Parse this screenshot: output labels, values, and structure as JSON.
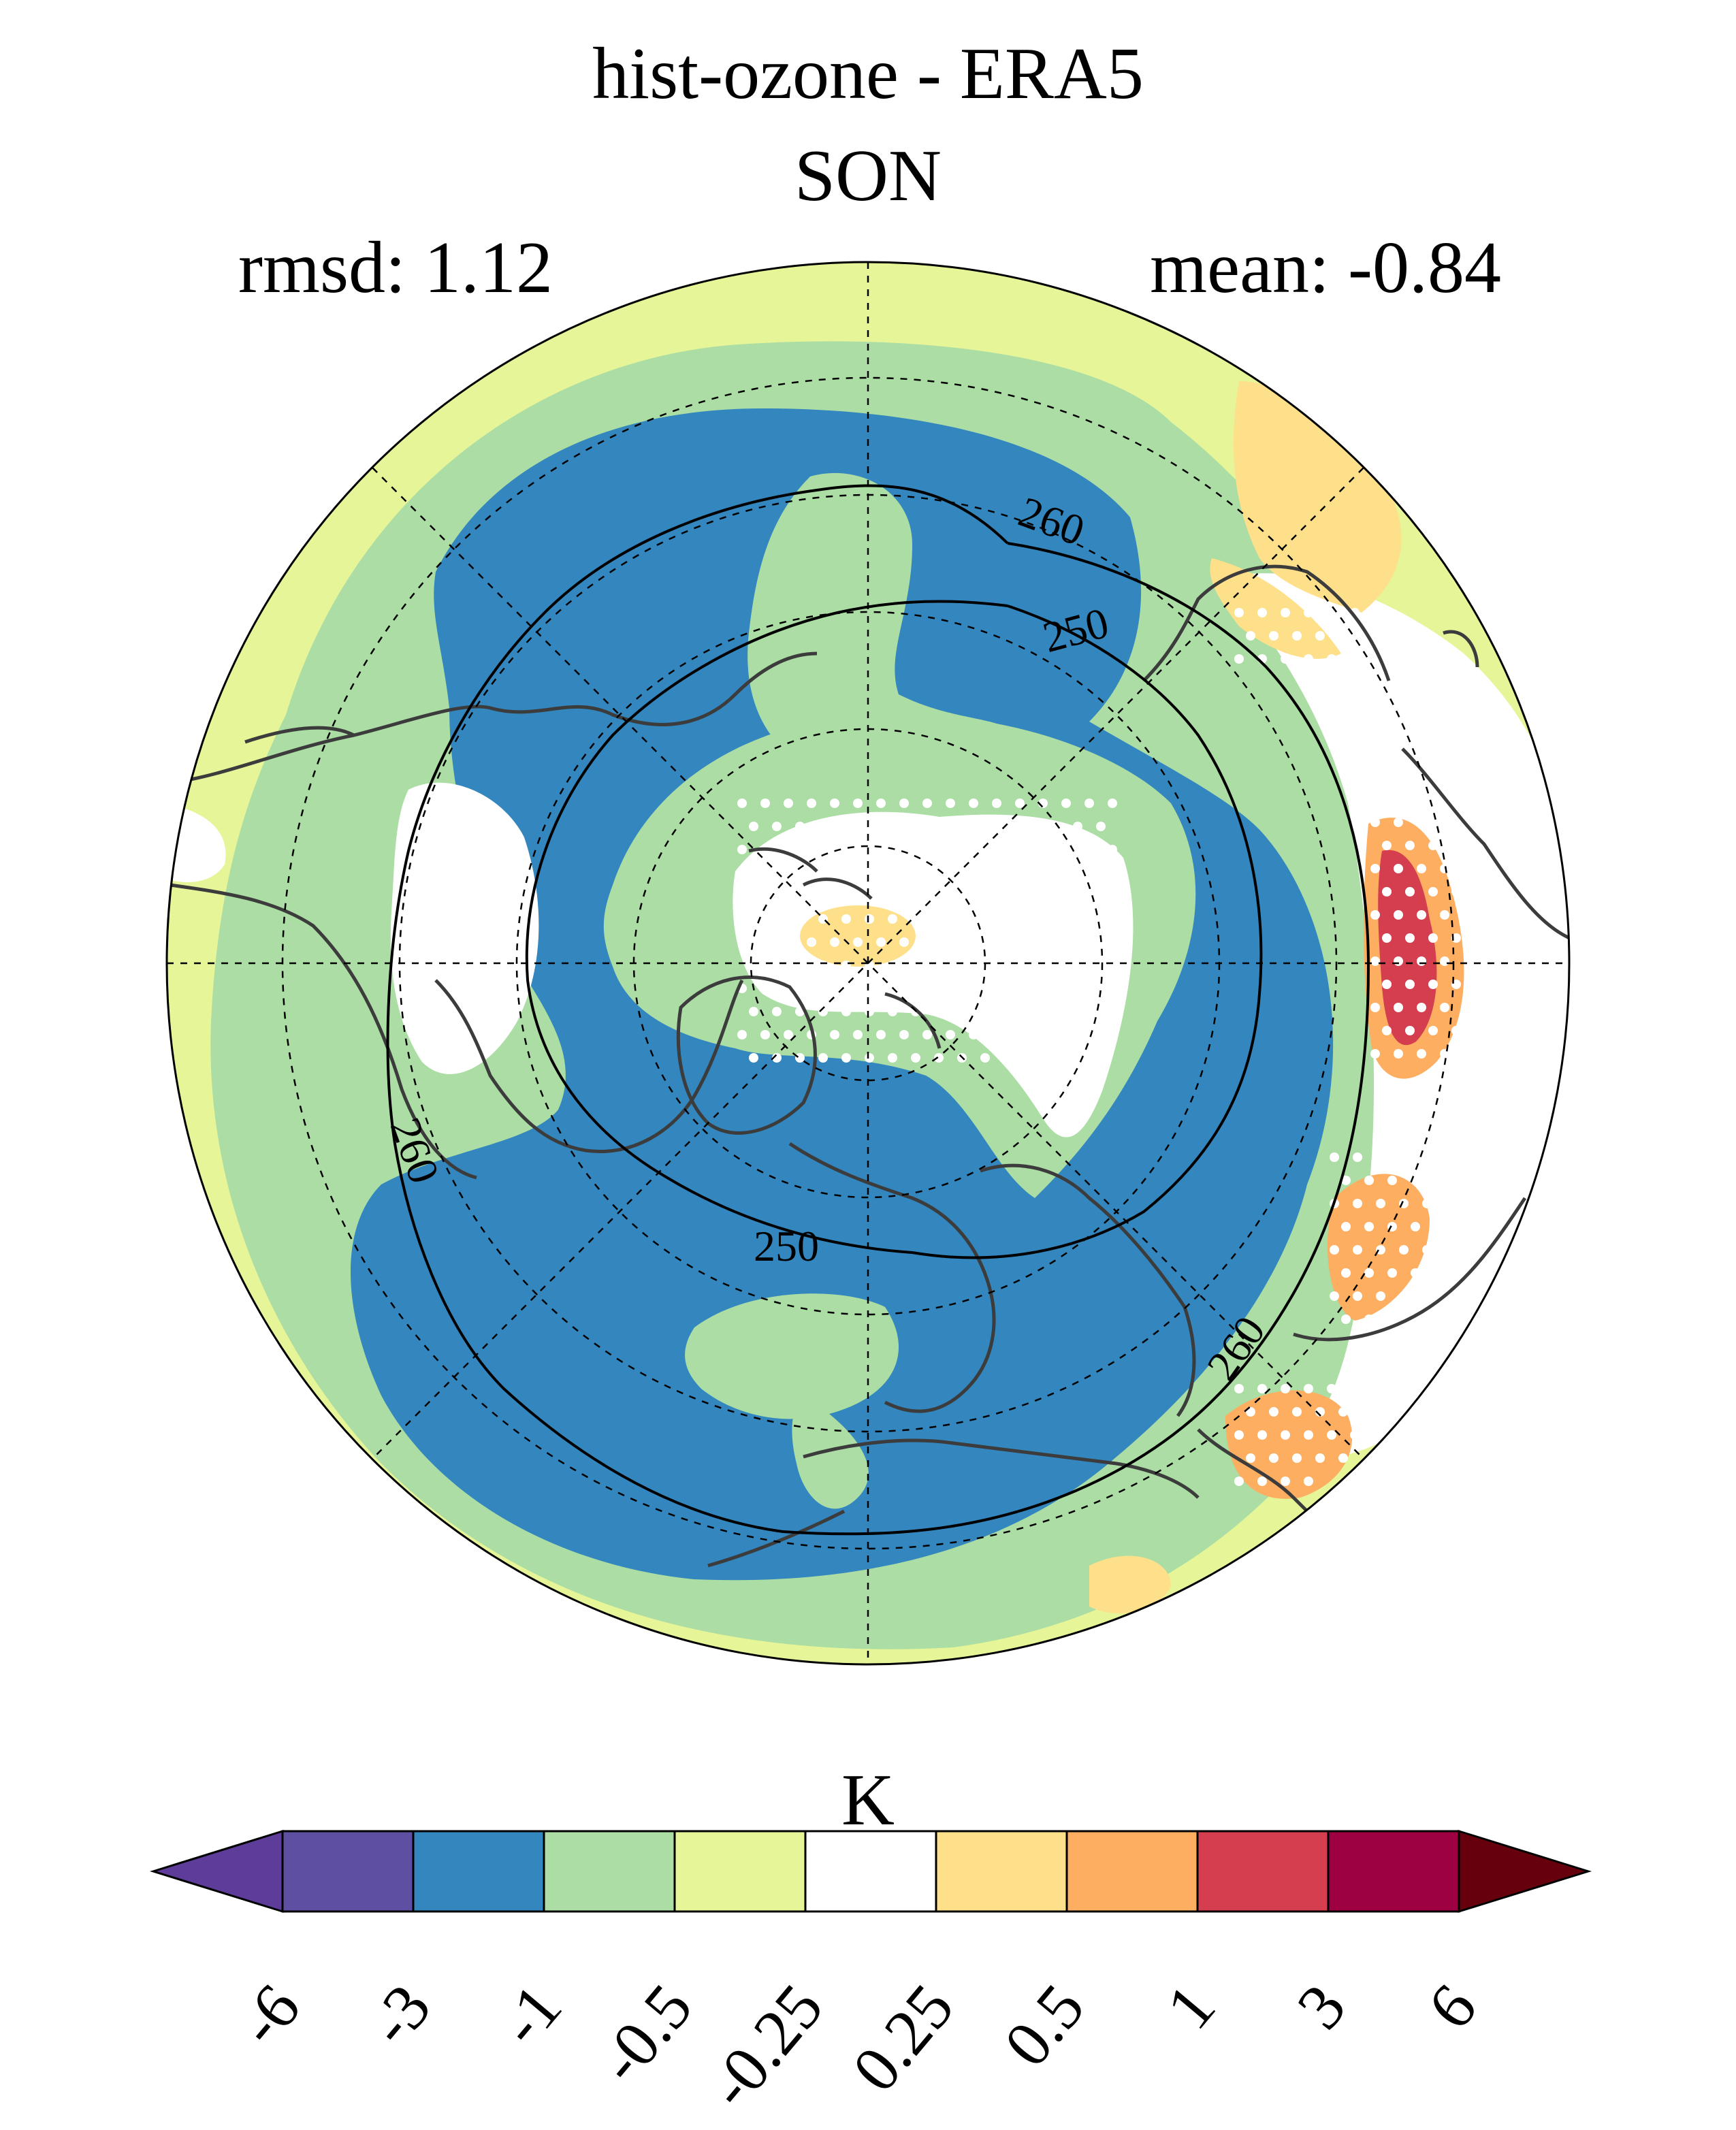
{
  "title": {
    "line1": "hist-ozone - ERA5",
    "line2": "SON"
  },
  "stats": {
    "rmsd": "rmsd: 1.12",
    "mean": "mean: -0.84"
  },
  "map": {
    "projection": "north-polar-stereographic",
    "contours": [
      {
        "label": "260"
      },
      {
        "label": "250"
      },
      {
        "label": "250"
      },
      {
        "label": "260"
      },
      {
        "label": "260"
      }
    ],
    "colors": {
      "blue": "#3386be",
      "green": "#abdda4",
      "lightyellow": "#e6f598",
      "white": "#ffffff",
      "yellow": "#fee08b",
      "orange": "#fdae61",
      "red": "#d53e4f",
      "coast": "#3c3c3c"
    }
  },
  "colorbar": {
    "unit": "K",
    "levels": [
      "-6",
      "-3",
      "-1",
      "-0.5",
      "-0.25",
      "0.25",
      "0.5",
      "1",
      "3",
      "6"
    ],
    "colors": [
      "#5e3c99",
      "#5e4fa2",
      "#3386be",
      "#abdda4",
      "#e6f598",
      "#ffffff",
      "#fee08b",
      "#fdae61",
      "#d53e4f",
      "#9e0142",
      "#67000d"
    ]
  }
}
